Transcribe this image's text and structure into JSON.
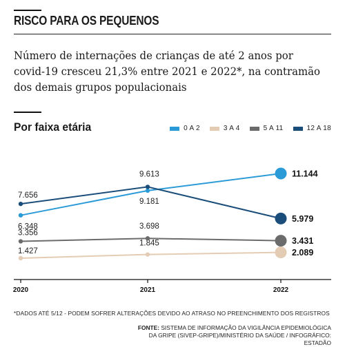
{
  "kicker": "RISCO PARA OS PEQUENOS",
  "headline": "Número de internações de crianças de até 2 anos por covid-19 cresceu 21,3% entre 2021 e 2022*, na contramão dos demais grupos populacionais",
  "subtitle": "Por faixa etária",
  "footnote": "*DADOS ATÉ 5/12 - PODEM SOFRER ALTERAÇÕES DEVIDO AO ATRASO NO PREENCHIMENTO DOS REGISTROS",
  "source": {
    "label": "FONTE:",
    "text": "SISTEMA DE INFORMAÇÃO DA VIGILÂNCIA EPIDEMIOLÓGICA DA GRIPE (SIVEP-GRIPE)/MINISTÉRIO DA SAÚDE / INFOGRÁFICO: ESTADÃO"
  },
  "chart_data": {
    "type": "line",
    "title": "",
    "xlabel": "",
    "ylabel": "",
    "categories": [
      "2020",
      "2021",
      "2022"
    ],
    "ylim": [
      0,
      12000
    ],
    "grid": false,
    "legend_position": "top-right",
    "series": [
      {
        "name": "0 A 2",
        "color": "#2b9bd8",
        "values": [
          6348,
          9181,
          11144
        ],
        "labels": [
          "6.348",
          "9.181",
          "11.144"
        ]
      },
      {
        "name": "3 A 4",
        "color": "#e4cbb3",
        "values": [
          1427,
          1845,
          2089
        ],
        "labels": [
          "1.427",
          "1.845",
          "2.089"
        ]
      },
      {
        "name": "5 A 11",
        "color": "#6b6b6b",
        "values": [
          3356,
          3698,
          3431
        ],
        "labels": [
          "3.356",
          "3.698",
          "3.431"
        ]
      },
      {
        "name": "12 A 18",
        "color": "#1b4d7a",
        "values": [
          7656,
          9613,
          5979
        ],
        "labels": [
          "7.656",
          "9.613",
          "5.979"
        ]
      }
    ]
  }
}
